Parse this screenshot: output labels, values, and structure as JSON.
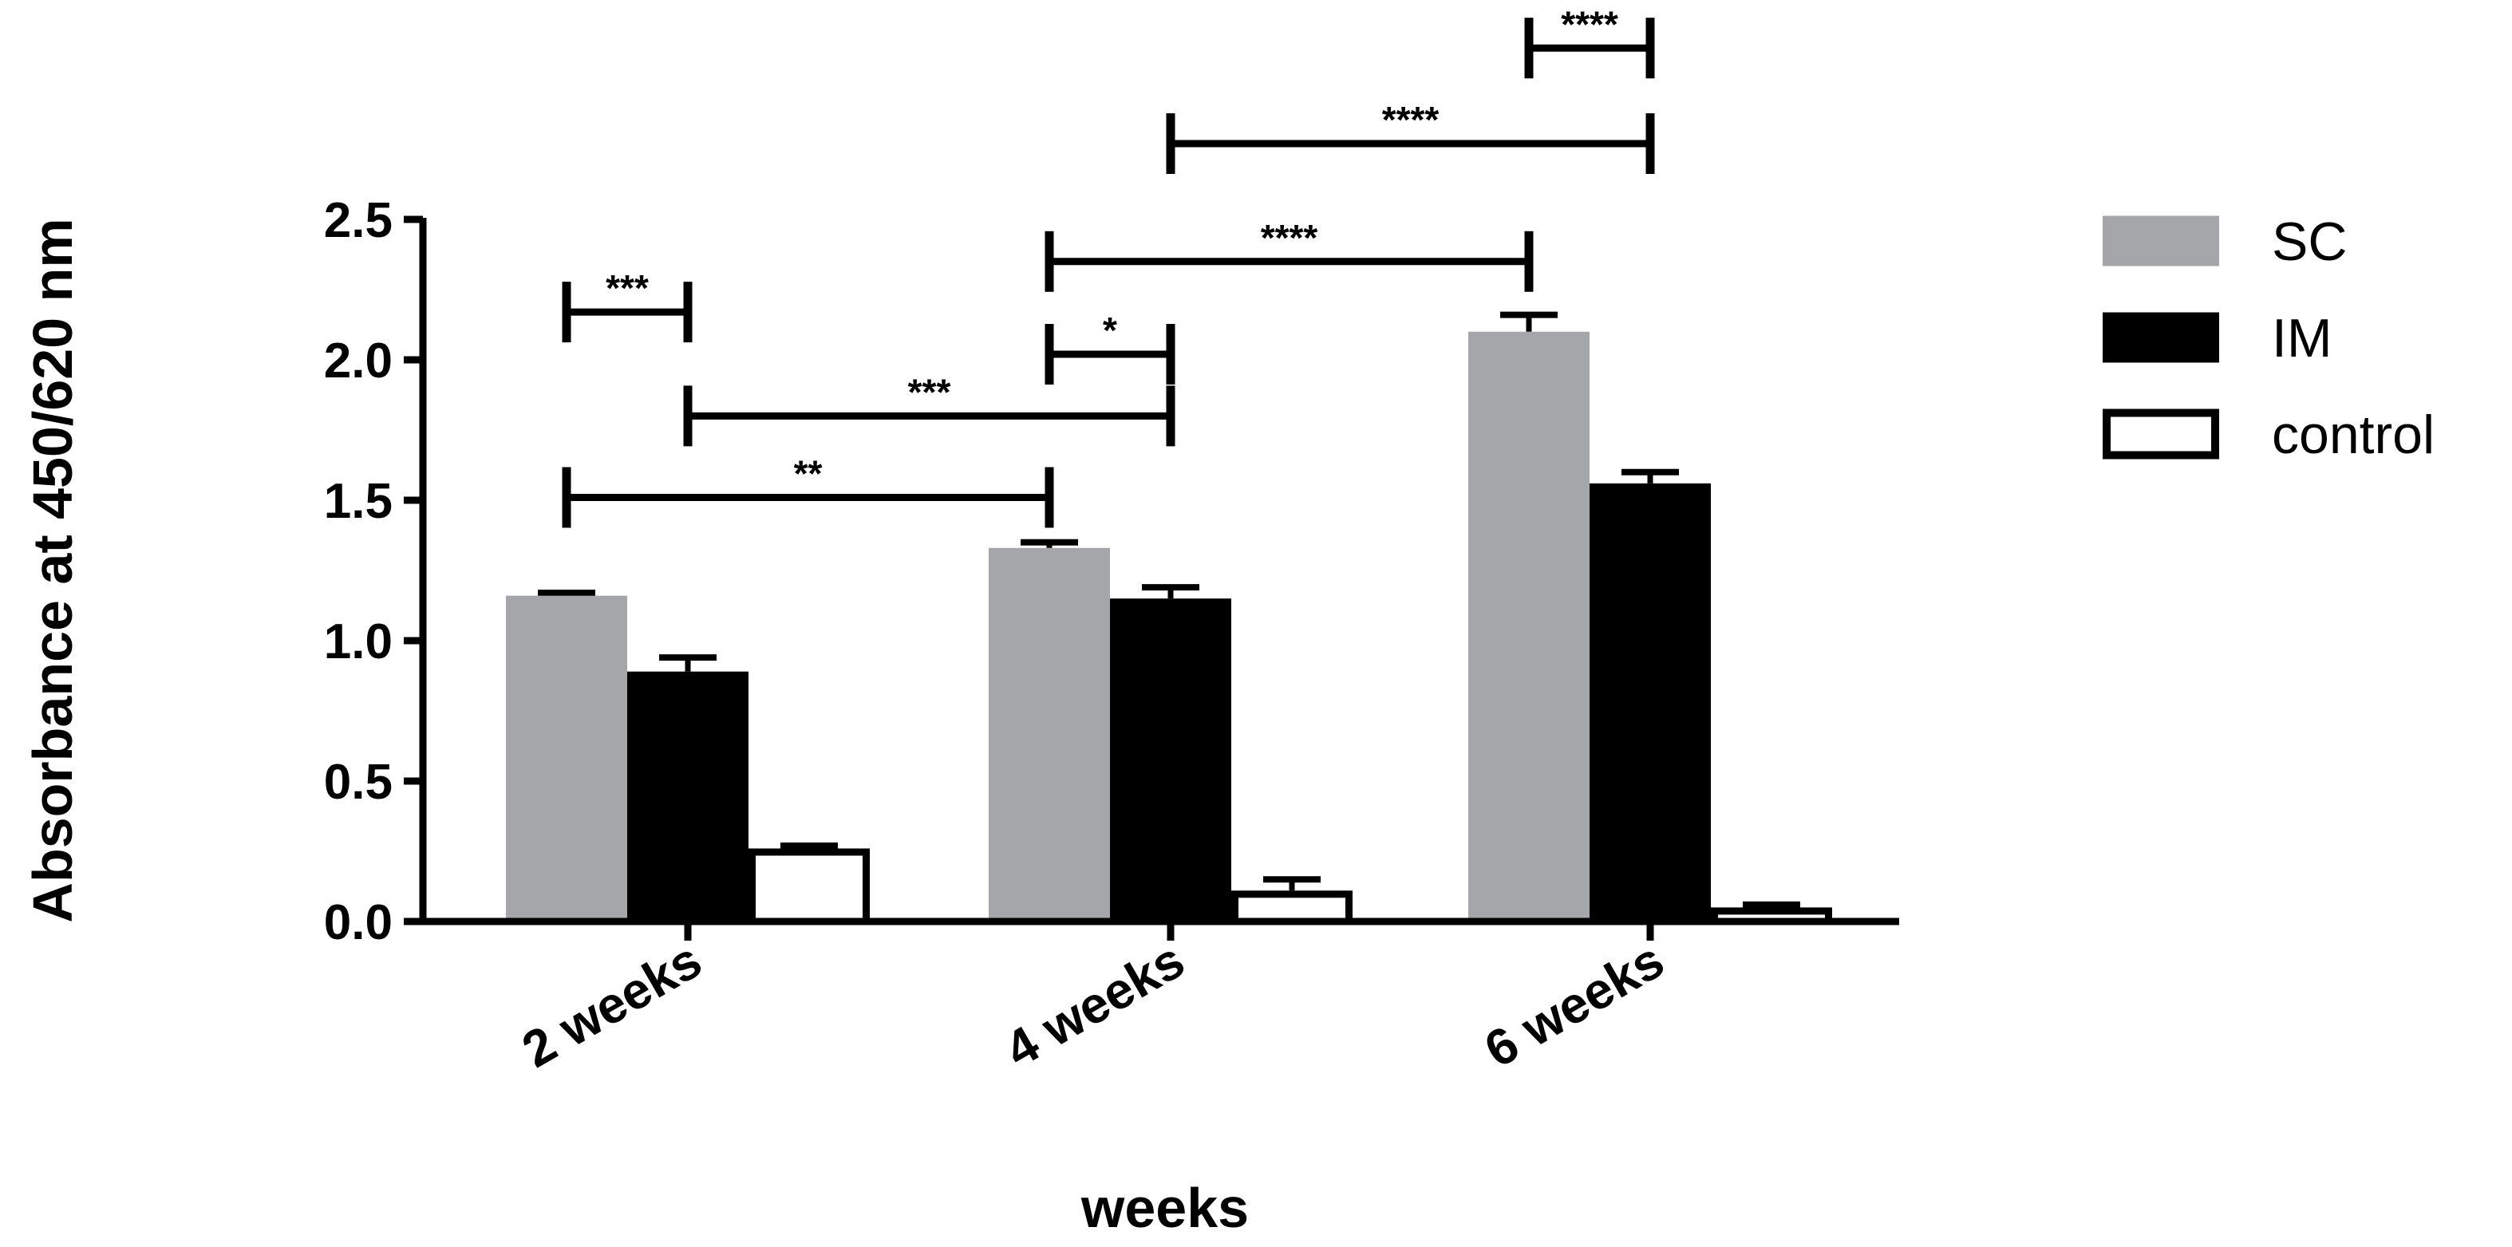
{
  "chart_data": {
    "type": "bar",
    "title": "",
    "xlabel": "weeks",
    "ylabel": "Absorbance at 450/620 nm",
    "ylim": [
      0,
      2.5
    ],
    "yticks": [
      0.0,
      0.5,
      1.0,
      1.5,
      2.0,
      2.5
    ],
    "ytick_labels": [
      "0.0",
      "0.5",
      "1.0",
      "1.5",
      "2.0",
      "2.5"
    ],
    "categories": [
      "2 weeks",
      "4 weeks",
      "6 weeks"
    ],
    "series": [
      {
        "name": "SC",
        "color": "#a5a6aa",
        "fill": "solid",
        "values": [
          1.16,
          1.33,
          2.1
        ],
        "errors": [
          0.01,
          0.02,
          0.06
        ]
      },
      {
        "name": "IM",
        "color": "#000000",
        "fill": "solid",
        "values": [
          0.89,
          1.15,
          1.56
        ],
        "errors": [
          0.05,
          0.04,
          0.04
        ]
      },
      {
        "name": "control",
        "color": "#ffffff",
        "fill": "outline",
        "values": [
          0.26,
          0.11,
          0.05
        ],
        "errors": [
          0.01,
          0.04,
          0.01
        ]
      }
    ],
    "significance": [
      {
        "label": "***",
        "from": {
          "category": 0,
          "series": 0
        },
        "to": {
          "category": 0,
          "series": 1
        },
        "y": 2.17
      },
      {
        "label": "**",
        "from": {
          "category": 0,
          "series": 0
        },
        "to": {
          "category": 1,
          "series": 0
        },
        "y": 1.51
      },
      {
        "label": "***",
        "from": {
          "category": 0,
          "series": 1
        },
        "to": {
          "category": 1,
          "series": 1
        },
        "y": 1.8
      },
      {
        "label": "*",
        "from": {
          "category": 1,
          "series": 0
        },
        "to": {
          "category": 1,
          "series": 1
        },
        "y": 2.02
      },
      {
        "label": "****",
        "from": {
          "category": 1,
          "series": 0
        },
        "to": {
          "category": 2,
          "series": 0
        },
        "y": 2.35
      },
      {
        "label": "****",
        "from": {
          "category": 1,
          "series": 1
        },
        "to": {
          "category": 2,
          "series": 1
        },
        "y": 2.77
      },
      {
        "label": "****",
        "from": {
          "category": 2,
          "series": 0
        },
        "to": {
          "category": 2,
          "series": 1
        },
        "y": 3.11
      }
    ],
    "legend": {
      "position": "right",
      "entries": [
        "SC",
        "IM",
        "control"
      ]
    }
  }
}
